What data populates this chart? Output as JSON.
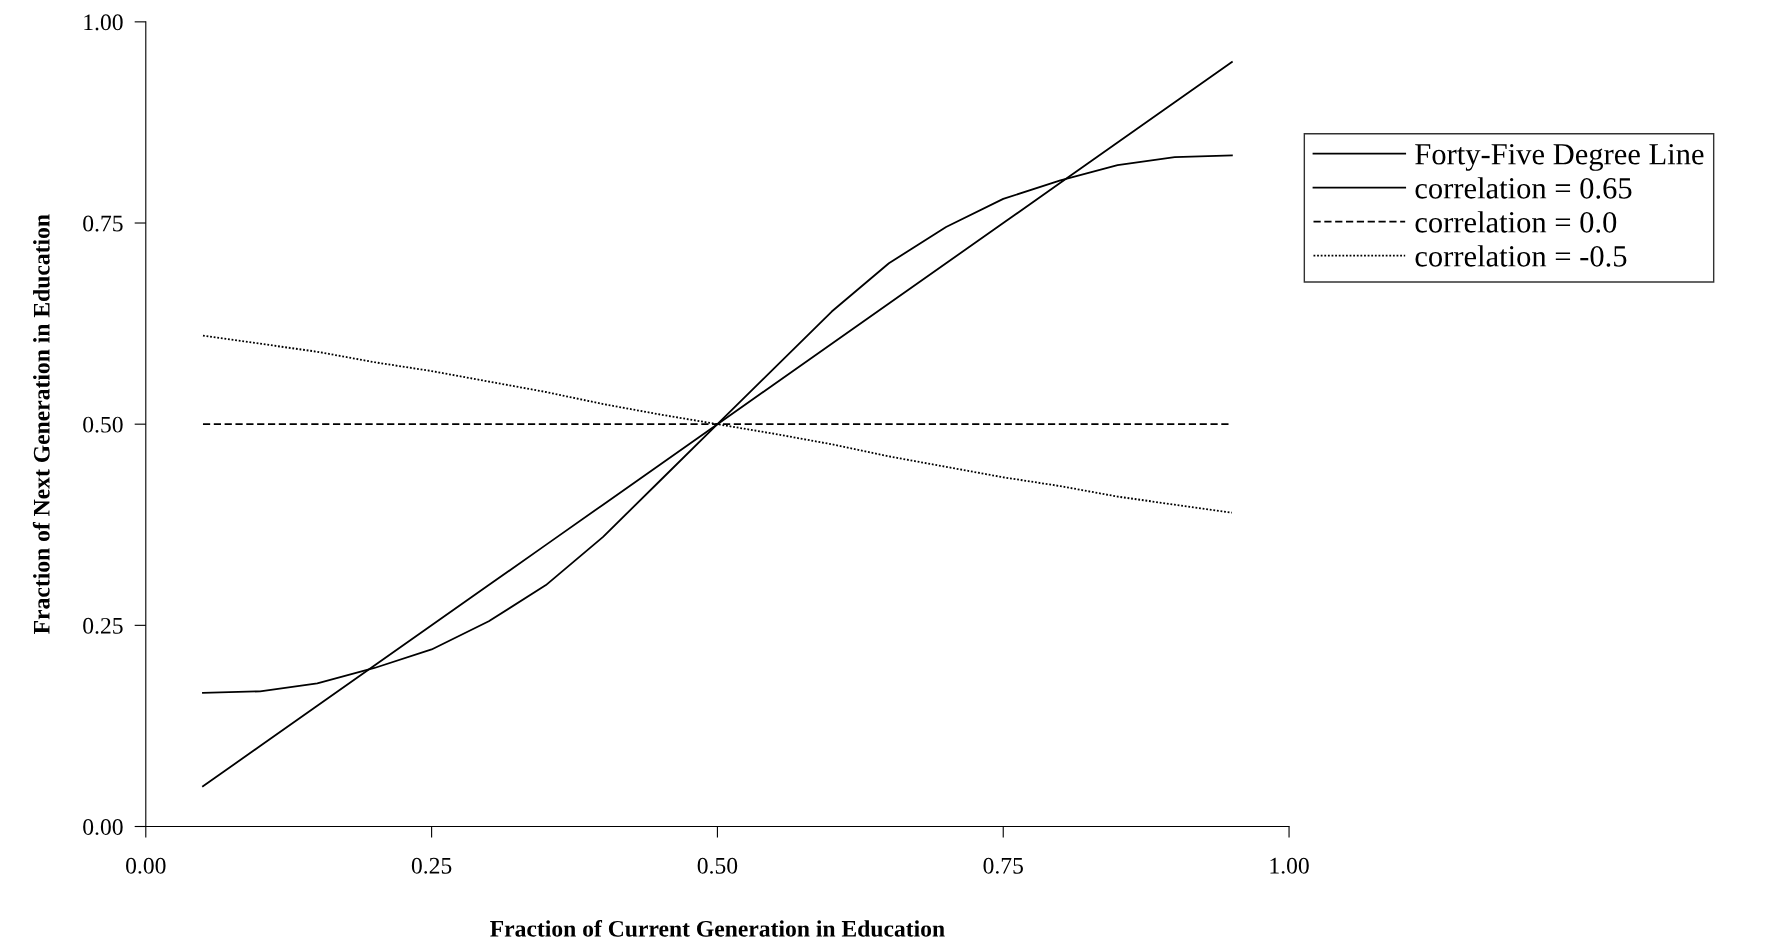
{
  "chart_data": {
    "type": "line",
    "xlabel": "Fraction of Current Generation in Education",
    "ylabel": "Fraction of Next Generation in Education",
    "xlim": [
      0,
      1
    ],
    "ylim": [
      0,
      1
    ],
    "xticks": [
      {
        "value": 0,
        "label": "0.00"
      },
      {
        "value": 0.25,
        "label": "0.25"
      },
      {
        "value": 0.5,
        "label": "0.50"
      },
      {
        "value": 0.75,
        "label": "0.75"
      },
      {
        "value": 1,
        "label": "1.00"
      }
    ],
    "yticks": [
      {
        "value": 0,
        "label": "0.00"
      },
      {
        "value": 0.25,
        "label": "0.25"
      },
      {
        "value": 0.5,
        "label": "0.50"
      },
      {
        "value": 0.75,
        "label": "0.75"
      },
      {
        "value": 1,
        "label": "1.00"
      }
    ],
    "grid": false,
    "legend": "top right",
    "marker": "none",
    "x": [
      0.05,
      0.1,
      0.15,
      0.2,
      0.25,
      0.3,
      0.35,
      0.4,
      0.45,
      0.5,
      0.55,
      0.6,
      0.65,
      0.7,
      0.75,
      0.8,
      0.85,
      0.9,
      0.95
    ],
    "series": [
      {
        "name": "Forty-Five Degree Line",
        "color": "#000000",
        "line_style": "solid",
        "values": [
          0.05,
          0.1,
          0.15,
          0.2,
          0.25,
          0.3,
          0.35,
          0.4,
          0.45,
          0.5,
          0.55,
          0.6,
          0.65,
          0.7,
          0.75,
          0.8,
          0.85,
          0.9,
          0.95
        ]
      },
      {
        "name": "correlation = 0.65",
        "color": "#000000",
        "line_style": "solid",
        "values": [
          0.166,
          0.168,
          0.178,
          0.197,
          0.22,
          0.255,
          0.3,
          0.36,
          0.43,
          0.5,
          0.57,
          0.64,
          0.7,
          0.745,
          0.78,
          0.803,
          0.822,
          0.832,
          0.834
        ]
      },
      {
        "name": "correlation = 0.0",
        "color": "#000000",
        "line_style": "dashed",
        "values": [
          0.5,
          0.5,
          0.5,
          0.5,
          0.5,
          0.5,
          0.5,
          0.5,
          0.5,
          0.5,
          0.5,
          0.5,
          0.5,
          0.5,
          0.5,
          0.5,
          0.5,
          0.5,
          0.5
        ]
      },
      {
        "name": "correlation = -0.5",
        "color": "#000000",
        "line_style": "dotted",
        "values": [
          0.61,
          0.6,
          0.59,
          0.577,
          0.566,
          0.553,
          0.54,
          0.525,
          0.512,
          0.5,
          0.488,
          0.475,
          0.46,
          0.447,
          0.434,
          0.423,
          0.41,
          0.4,
          0.39
        ]
      }
    ]
  }
}
